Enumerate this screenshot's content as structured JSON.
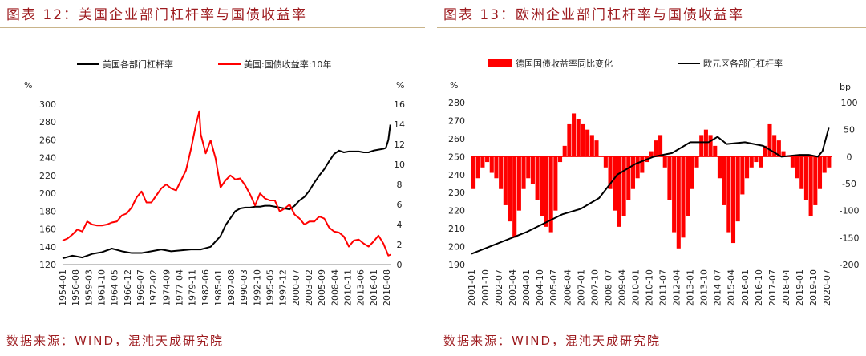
{
  "left": {
    "fig_title": "图表 12：美国企业部门杠杆率与国债收益率",
    "source": "数据来源：WIND，混沌天成研究院",
    "y_unit_left": "%",
    "y_unit_right": "%",
    "chart_data": {
      "type": "line",
      "legend": [
        "美国各部门杠杆率",
        "美国:国债收益率:10年"
      ],
      "legend_position": "top-center",
      "grid": false,
      "x_labels": [
        "1954-01",
        "1956-08",
        "1959-03",
        "1961-10",
        "1964-05",
        "1966-12",
        "1969-07",
        "1972-02",
        "1974-09",
        "1977-04",
        "1979-11",
        "1982-06",
        "1985-01",
        "1987-08",
        "1990-03",
        "1992-10",
        "1995-05",
        "1997-12",
        "2000-07",
        "2003-02",
        "2005-09",
        "2008-04",
        "2010-11",
        "2013-06",
        "2016-01",
        "2018-08"
      ],
      "ylim_left": [
        120,
        300
      ],
      "yticks_left": [
        120,
        140,
        160,
        180,
        200,
        220,
        240,
        260,
        280,
        300
      ],
      "ylim_right": [
        0,
        16
      ],
      "yticks_right": [
        0,
        2,
        4,
        6,
        8,
        10,
        12,
        14,
        16
      ],
      "series": [
        {
          "name": "美国各部门杠杆率",
          "axis": "left",
          "color": "#000000",
          "x": [
            1954,
            1956,
            1958,
            1960,
            1962,
            1964,
            1966,
            1968,
            1970,
            1972,
            1974,
            1976,
            1978,
            1980,
            1982,
            1984,
            1986,
            1987,
            1988,
            1989,
            1990,
            1991,
            1992,
            1993,
            1994,
            1995,
            1996,
            1997,
            1998,
            1999,
            2000,
            2001,
            2002,
            2003,
            2004,
            2005,
            2006,
            2007,
            2008,
            2009,
            2010,
            2011,
            2012,
            2013,
            2014,
            2015,
            2016,
            2017,
            2018,
            2019,
            2019.5,
            2020,
            2020.4
          ],
          "y": [
            127,
            130,
            128,
            132,
            134,
            138,
            135,
            133,
            133,
            135,
            137,
            135,
            136,
            137,
            137,
            140,
            152,
            164,
            172,
            180,
            183,
            184,
            184,
            185,
            185,
            186,
            186,
            185,
            184,
            183,
            182,
            186,
            192,
            196,
            203,
            212,
            220,
            227,
            236,
            244,
            248,
            246,
            247,
            247,
            247,
            246,
            246,
            248,
            249,
            250,
            251,
            260,
            277
          ]
        },
        {
          "name": "美国:国债收益率:10年",
          "axis": "right",
          "color": "#ff0000",
          "x": [
            1954,
            1955,
            1956,
            1957,
            1958,
            1959,
            1960,
            1961,
            1962,
            1963,
            1964,
            1965,
            1966,
            1967,
            1968,
            1969,
            1970,
            1971,
            1972,
            1973,
            1974,
            1975,
            1976,
            1977,
            1978,
            1979,
            1980,
            1981,
            1981.7,
            1982,
            1983,
            1984,
            1985,
            1986,
            1987,
            1988,
            1989,
            1990,
            1991,
            1992,
            1993,
            1994,
            1995,
            1996,
            1997,
            1998,
            1999,
            2000,
            2001,
            2002,
            2003,
            2004,
            2005,
            2006,
            2007,
            2008,
            2009,
            2010,
            2011,
            2012,
            2013,
            2014,
            2015,
            2016,
            2017,
            2018,
            2019,
            2020,
            2020.5
          ],
          "y": [
            2.4,
            2.6,
            3.0,
            3.5,
            3.3,
            4.3,
            4.0,
            3.9,
            3.9,
            4.0,
            4.2,
            4.3,
            4.9,
            5.1,
            5.7,
            6.7,
            7.3,
            6.2,
            6.2,
            6.9,
            7.6,
            8.0,
            7.6,
            7.4,
            8.4,
            9.4,
            11.5,
            13.9,
            15.3,
            13.0,
            11.1,
            12.4,
            10.6,
            7.7,
            8.4,
            8.9,
            8.5,
            8.6,
            7.9,
            7.0,
            5.9,
            7.1,
            6.6,
            6.4,
            6.4,
            5.3,
            5.6,
            6.0,
            5.0,
            4.6,
            4.0,
            4.3,
            4.3,
            4.8,
            4.6,
            3.7,
            3.3,
            3.2,
            2.8,
            1.8,
            2.4,
            2.5,
            2.1,
            1.8,
            2.3,
            2.9,
            2.1,
            0.9,
            1.0
          ]
        }
      ]
    }
  },
  "right": {
    "fig_title": "图表 13：欧洲企业部门杠杆率与国债收益率",
    "source": "数据来源：WIND，混沌天成研究院",
    "y_unit_left": "%",
    "y_unit_right": "bp",
    "chart_data": {
      "type": "bar+line",
      "legend": [
        "德国国债收益率同比变化",
        "欧元区各部门杠杆率"
      ],
      "legend_position": "top-center",
      "grid": false,
      "x_labels": [
        "2001-01",
        "2001-10",
        "2002-07",
        "2003-04",
        "2004-01",
        "2004-10",
        "2005-07",
        "2006-04",
        "2007-01",
        "2007-10",
        "2008-07",
        "2009-04",
        "2010-01",
        "2010-10",
        "2011-07",
        "2012-04",
        "2013-01",
        "2013-10",
        "2014-07",
        "2015-04",
        "2016-01",
        "2016-10",
        "2017-07",
        "2018-04",
        "2019-01",
        "2019-10",
        "2020-07"
      ],
      "ylim_left": [
        190,
        280
      ],
      "yticks_left": [
        190,
        200,
        210,
        220,
        230,
        240,
        250,
        260,
        270,
        280
      ],
      "ylim_right": [
        -200,
        100
      ],
      "yticks_right": [
        -200,
        -150,
        -100,
        -50,
        0,
        50,
        100
      ],
      "bar_series": {
        "name": "德国国债收益率同比变化",
        "axis": "right",
        "color": "#ff0000",
        "x": [
          2001.0,
          2001.25,
          2001.5,
          2001.75,
          2002.0,
          2002.25,
          2002.5,
          2002.75,
          2003.0,
          2003.25,
          2003.5,
          2003.75,
          2004.0,
          2004.25,
          2004.5,
          2004.75,
          2005.0,
          2005.25,
          2005.5,
          2005.75,
          2006.0,
          2006.25,
          2006.5,
          2006.75,
          2007.0,
          2007.25,
          2007.5,
          2007.75,
          2008.0,
          2008.25,
          2008.5,
          2008.75,
          2009.0,
          2009.25,
          2009.5,
          2009.75,
          2010.0,
          2010.25,
          2010.5,
          2010.75,
          2011.0,
          2011.25,
          2011.5,
          2011.75,
          2012.0,
          2012.25,
          2012.5,
          2012.75,
          2013.0,
          2013.25,
          2013.5,
          2013.75,
          2014.0,
          2014.25,
          2014.5,
          2014.75,
          2015.0,
          2015.25,
          2015.5,
          2015.75,
          2016.0,
          2016.25,
          2016.5,
          2016.75,
          2017.0,
          2017.25,
          2017.5,
          2017.75,
          2018.0,
          2018.25,
          2018.5,
          2018.75,
          2019.0,
          2019.25,
          2019.5,
          2019.75,
          2020.0,
          2020.25,
          2020.5
        ],
        "values": [
          -60,
          -40,
          -20,
          -10,
          -30,
          -40,
          -60,
          -90,
          -120,
          -150,
          -100,
          -60,
          -40,
          -50,
          -80,
          -110,
          -130,
          -140,
          -100,
          -10,
          20,
          60,
          80,
          70,
          60,
          50,
          40,
          30,
          0,
          -20,
          -60,
          -100,
          -130,
          -110,
          -80,
          -60,
          -40,
          -30,
          -10,
          10,
          30,
          40,
          -20,
          -80,
          -140,
          -170,
          -150,
          -110,
          -60,
          -20,
          40,
          50,
          40,
          20,
          -40,
          -90,
          -140,
          -160,
          -120,
          -70,
          -40,
          -20,
          -10,
          -20,
          20,
          60,
          40,
          30,
          10,
          0,
          -20,
          -40,
          -60,
          -80,
          -110,
          -90,
          -60,
          -30,
          -20
        ]
      },
      "line_series": {
        "name": "欧元区各部门杠杆率",
        "axis": "left",
        "color": "#000000",
        "x": [
          2001.0,
          2002.0,
          2003.0,
          2004.0,
          2005.0,
          2006.0,
          2007.0,
          2008.0,
          2009.0,
          2010.0,
          2011.0,
          2012.0,
          2013.0,
          2014.0,
          2014.5,
          2015.0,
          2016.0,
          2017.0,
          2018.0,
          2019.0,
          2019.5,
          2020.0,
          2020.25,
          2020.6
        ],
        "y": [
          196,
          200,
          204,
          208,
          213,
          218,
          221,
          227,
          240,
          246,
          250,
          252,
          258,
          258,
          261,
          257,
          258,
          256,
          250,
          251,
          251,
          250,
          253,
          266
        ]
      }
    }
  }
}
